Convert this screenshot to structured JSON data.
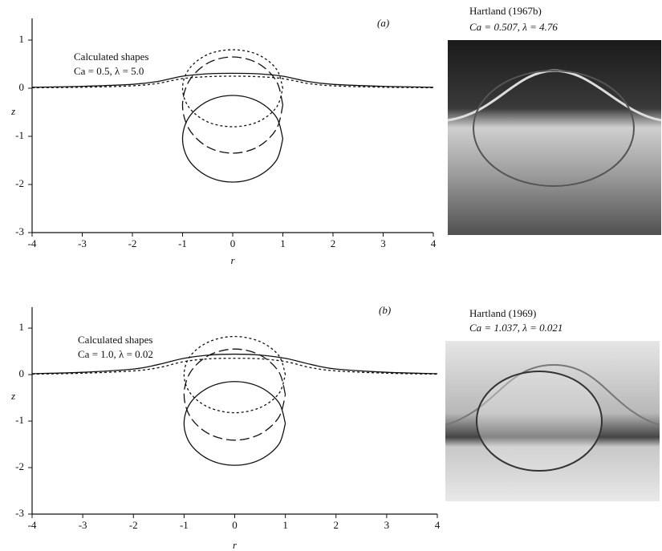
{
  "chart_data": [
    {
      "type": "line",
      "panel_label": "(a)",
      "annotation": [
        "Calculated shapes",
        "Ca = 0.5, λ = 5.0"
      ],
      "xlabel": "r",
      "ylabel": "z",
      "xlim": [
        -4,
        4
      ],
      "ylim": [
        -3,
        1.45
      ],
      "xticks": [
        -4,
        -3,
        -2,
        -1,
        0,
        1,
        2,
        3,
        4
      ],
      "yticks": [
        -3,
        -2,
        -1,
        0,
        1
      ],
      "series": [
        {
          "dash": "none",
          "x": [
            -4,
            -3,
            -2,
            -1.5,
            -1,
            -0.5,
            0,
            0.5,
            1,
            1.5,
            2,
            3,
            4
          ],
          "values": [
            0.02,
            0.04,
            0.08,
            0.14,
            0.25,
            0.3,
            0.31,
            0.3,
            0.25,
            0.14,
            0.08,
            0.04,
            0.02
          ]
        },
        {
          "dash": "3 3",
          "x": [
            -4,
            -3,
            -2,
            -1.5,
            -1,
            -0.5,
            0,
            0.5,
            1,
            1.5,
            2,
            3,
            4
          ],
          "values": [
            0.01,
            0.02,
            0.05,
            0.1,
            0.2,
            0.24,
            0.25,
            0.24,
            0.2,
            0.1,
            0.05,
            0.02,
            0.01
          ]
        },
        {
          "dash": "none",
          "x": [
            1,
            0.87,
            0.5,
            0,
            -0.5,
            -0.87,
            -1,
            -0.87,
            -0.5,
            0,
            0.5,
            0.87,
            1
          ],
          "values": [
            -1.05,
            -0.6,
            -0.27,
            -0.15,
            -0.27,
            -0.6,
            -1.05,
            -1.5,
            -1.83,
            -1.95,
            -1.83,
            -1.5,
            -1.05
          ]
        },
        {
          "dash": "12 5",
          "x": [
            1,
            0.87,
            0.5,
            0,
            -0.5,
            -0.87,
            -1,
            -0.87,
            -0.5,
            0,
            0.5,
            0.87,
            1
          ],
          "values": [
            -0.35,
            0.15,
            0.52,
            0.65,
            0.52,
            0.15,
            -0.35,
            -0.85,
            -1.22,
            -1.35,
            -1.22,
            -0.85,
            -0.35
          ]
        },
        {
          "dash": "3 3",
          "x": [
            1,
            0.87,
            0.5,
            0,
            -0.5,
            -0.87,
            -1,
            -0.87,
            -0.5,
            0,
            0.5,
            0.87,
            1
          ],
          "values": [
            0,
            0.4,
            0.7,
            0.8,
            0.7,
            0.4,
            0,
            -0.4,
            -0.7,
            -0.8,
            -0.7,
            -0.4,
            0
          ]
        }
      ]
    },
    {
      "type": "line",
      "panel_label": "(b)",
      "annotation": [
        "Calculated shapes",
        "Ca = 1.0, λ = 0.02"
      ],
      "xlabel": "r",
      "ylabel": "z",
      "xlim": [
        -4,
        4
      ],
      "ylim": [
        -3,
        1.45
      ],
      "xticks": [
        -4,
        -3,
        -2,
        -1,
        0,
        1,
        2,
        3,
        4
      ],
      "yticks": [
        -3,
        -2,
        -1,
        0,
        1
      ],
      "series": [
        {
          "dash": "none",
          "x": [
            -4,
            -3,
            -2,
            -1.5,
            -1,
            -0.5,
            0,
            0.5,
            1,
            1.5,
            2,
            3,
            4
          ],
          "values": [
            0.02,
            0.05,
            0.12,
            0.22,
            0.35,
            0.42,
            0.44,
            0.42,
            0.35,
            0.22,
            0.12,
            0.05,
            0.02
          ]
        },
        {
          "dash": "3 3",
          "x": [
            -4,
            -3,
            -2,
            -1.5,
            -1,
            -0.5,
            0,
            0.5,
            1,
            1.5,
            2,
            3,
            4
          ],
          "values": [
            0.01,
            0.03,
            0.08,
            0.15,
            0.28,
            0.34,
            0.35,
            0.34,
            0.28,
            0.15,
            0.08,
            0.03,
            0.01
          ]
        },
        {
          "dash": "none",
          "x": [
            1,
            0.87,
            0.5,
            0,
            -0.5,
            -0.87,
            -1,
            -0.87,
            -0.5,
            0,
            0.5,
            0.87,
            1
          ],
          "values": [
            -1.05,
            -0.6,
            -0.27,
            -0.15,
            -0.27,
            -0.6,
            -1.05,
            -1.5,
            -1.83,
            -1.95,
            -1.83,
            -1.5,
            -1.05
          ]
        },
        {
          "dash": "12 5",
          "x": [
            1,
            0.87,
            0.5,
            0,
            -0.5,
            -0.87,
            -1,
            -0.87,
            -0.5,
            0,
            0.5,
            0.87,
            1
          ],
          "values": [
            -0.43,
            0.06,
            0.42,
            0.55,
            0.42,
            0.06,
            -0.43,
            -0.92,
            -1.28,
            -1.41,
            -1.28,
            -0.92,
            -0.43
          ]
        },
        {
          "dash": "3 3",
          "x": [
            1,
            0.87,
            0.5,
            0,
            -0.5,
            -0.87,
            -1,
            -0.87,
            -0.5,
            0,
            0.5,
            0.87,
            1
          ],
          "values": [
            0,
            0.41,
            0.71,
            0.82,
            0.71,
            0.41,
            0,
            -0.41,
            -0.71,
            -0.82,
            -0.71,
            -0.41,
            0
          ]
        }
      ]
    }
  ],
  "photos": [
    {
      "title": "Hartland (1967b)",
      "caption": "Ca = 0.507, λ = 4.76"
    },
    {
      "title": "Hartland (1969)",
      "caption": "Ca = 1.037, λ = 0.021"
    }
  ]
}
